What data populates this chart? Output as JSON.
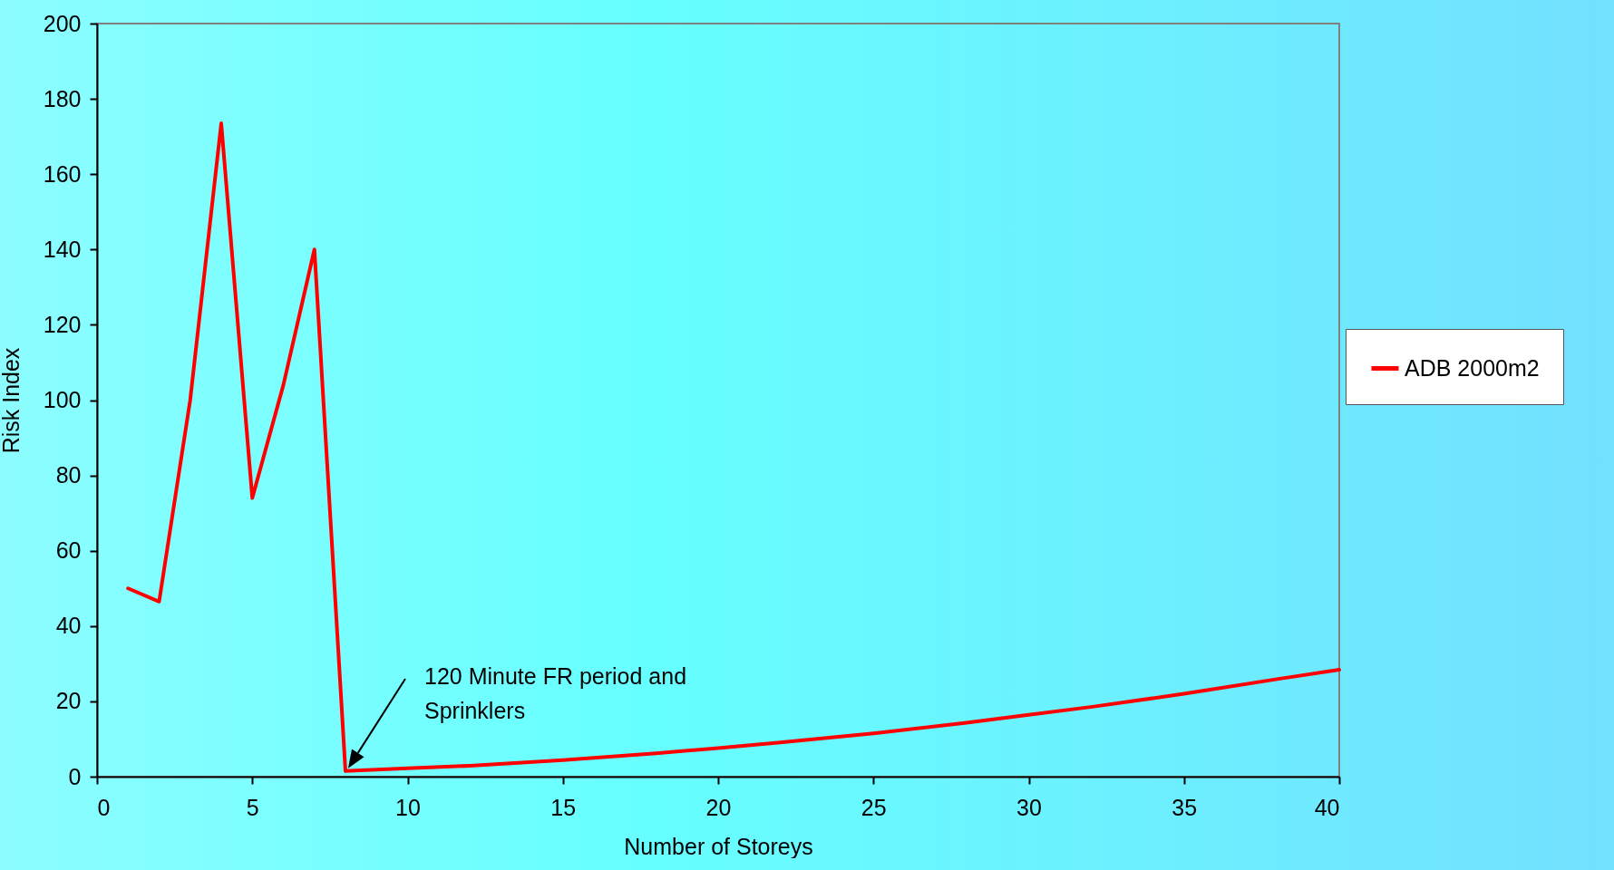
{
  "chart_data": {
    "type": "line",
    "xlabel": "Number of Storeys",
    "ylabel": "Risk Index",
    "xlim": [
      0,
      40
    ],
    "xticks": [
      0,
      5,
      10,
      15,
      20,
      25,
      30,
      35,
      40
    ],
    "ylim": [
      0,
      200
    ],
    "yticks": [
      0,
      20,
      40,
      60,
      80,
      100,
      120,
      140,
      160,
      180,
      200
    ],
    "grid": false,
    "legend": "right",
    "marker": "none",
    "line_style": "solid",
    "x": [
      1,
      2,
      3,
      4,
      5,
      6,
      7,
      8,
      10,
      12,
      15,
      18,
      20,
      22,
      25,
      28,
      30,
      32,
      35,
      38,
      40
    ],
    "series": [
      {
        "name": "ADB 2000m2",
        "color": "#ff0000",
        "values": [
          50,
          46.5,
          100,
          173.5,
          74,
          104,
          140,
          1.5,
          2.2,
          2.9,
          4.4,
          6.2,
          7.6,
          9.1,
          11.5,
          14.3,
          16.4,
          18.5,
          22,
          25.9,
          28.4
        ]
      }
    ],
    "annotations": [
      "120 Minute FR period and\nSprinklers"
    ]
  }
}
